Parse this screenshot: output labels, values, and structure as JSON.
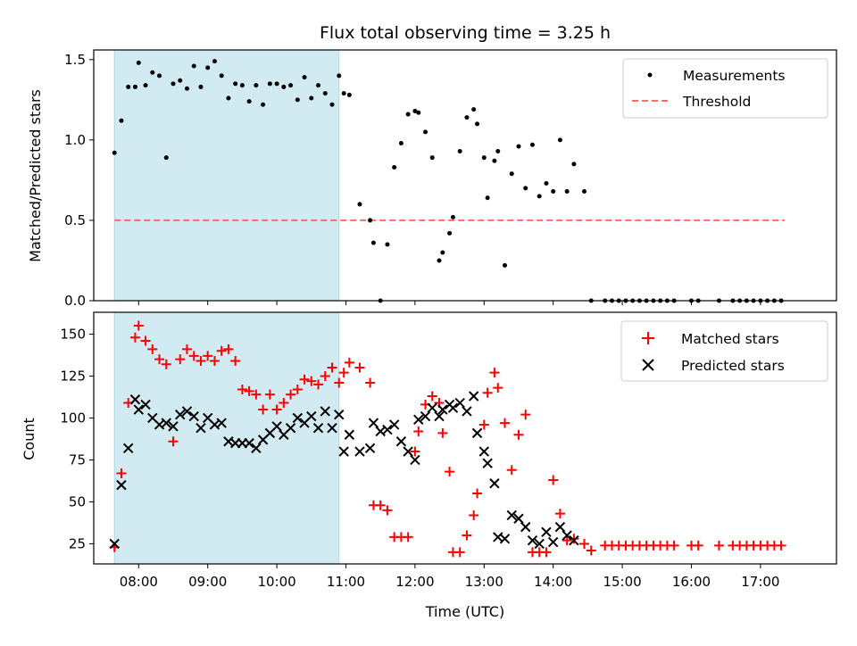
{
  "chart_data": {
    "type": "scatter",
    "title": "Flux total observing time = 3.25 h",
    "xlabel": "Time (UTC)",
    "x_ticks": [
      "08:00",
      "09:00",
      "10:00",
      "11:00",
      "12:00",
      "13:00",
      "14:00",
      "15:00",
      "16:00",
      "17:00"
    ],
    "xlim": [
      7.35,
      18.1
    ],
    "shaded_interval": [
      7.65,
      10.9
    ],
    "colors": {
      "shade": "#add8e6",
      "measurement": "#000000",
      "threshold": "#ff6b6b",
      "matched": "#ff0000",
      "predicted": "#000000"
    },
    "panels": [
      {
        "ylabel": "Matched/Predicted stars",
        "ylim": [
          0,
          1.56
        ],
        "y_ticks": [
          "0.0",
          "0.5",
          "1.0",
          "1.5"
        ],
        "legend_position": "top-right",
        "legend": [
          "Measurements",
          "Threshold"
        ],
        "threshold": {
          "name": "Threshold",
          "value": 0.5,
          "x_range": [
            7.65,
            17.35
          ]
        },
        "series": [
          {
            "name": "Measurements",
            "marker": "dot",
            "x": [
              7.65,
              7.75,
              7.85,
              7.95,
              8.0,
              8.1,
              8.2,
              8.3,
              8.4,
              8.5,
              8.6,
              8.7,
              8.8,
              8.9,
              9.0,
              9.1,
              9.2,
              9.3,
              9.4,
              9.5,
              9.6,
              9.7,
              9.8,
              9.9,
              10.0,
              10.1,
              10.2,
              10.3,
              10.4,
              10.5,
              10.6,
              10.7,
              10.8,
              10.9,
              10.97,
              11.05,
              11.2,
              11.35,
              11.4,
              11.5,
              11.6,
              11.7,
              11.8,
              11.9,
              12.0,
              12.05,
              12.15,
              12.25,
              12.35,
              12.4,
              12.5,
              12.55,
              12.65,
              12.75,
              12.85,
              12.9,
              13.0,
              13.05,
              13.15,
              13.2,
              13.3,
              13.4,
              13.5,
              13.6,
              13.7,
              13.8,
              13.9,
              14.0,
              14.1,
              14.2,
              14.3,
              14.45,
              14.55,
              14.75,
              14.85,
              14.95,
              15.05,
              15.15,
              15.25,
              15.35,
              15.45,
              15.55,
              15.65,
              15.75,
              16.0,
              16.1,
              16.4,
              16.6,
              16.7,
              16.8,
              16.9,
              17.0,
              17.1,
              17.2,
              17.3
            ],
            "y": [
              0.92,
              1.12,
              1.33,
              1.33,
              1.48,
              1.34,
              1.42,
              1.4,
              0.89,
              1.35,
              1.37,
              1.32,
              1.46,
              1.33,
              1.45,
              1.49,
              1.4,
              1.26,
              1.35,
              1.34,
              1.24,
              1.34,
              1.22,
              1.35,
              1.35,
              1.33,
              1.34,
              1.25,
              1.39,
              1.26,
              1.34,
              1.29,
              1.22,
              1.4,
              1.29,
              1.28,
              0.6,
              0.5,
              0.36,
              0.0,
              0.35,
              0.83,
              0.98,
              1.16,
              1.18,
              1.17,
              1.05,
              0.89,
              0.25,
              0.3,
              0.42,
              0.52,
              0.93,
              1.14,
              1.19,
              1.1,
              0.89,
              0.64,
              0.87,
              0.93,
              0.22,
              0.79,
              0.96,
              0.7,
              0.97,
              0.65,
              0.73,
              0.68,
              1.0,
              0.68,
              0.85,
              0.68,
              0.0,
              0.0,
              0.0,
              0.0,
              0.0,
              0.0,
              0.0,
              0.0,
              0.0,
              0.0,
              0.0,
              0.0,
              0.0,
              0.0,
              0.0,
              0.0,
              0.0,
              0.0,
              0.0,
              0.0,
              0.0,
              0.0,
              0.0
            ]
          }
        ]
      },
      {
        "ylabel": "Count",
        "ylim": [
          13,
          163
        ],
        "y_ticks": [
          "25",
          "50",
          "75",
          "100",
          "125",
          "150"
        ],
        "legend_position": "top-right",
        "legend": [
          "Matched stars",
          "Predicted stars"
        ],
        "series": [
          {
            "name": "Matched stars",
            "marker": "plus",
            "x": [
              7.65,
              7.75,
              7.85,
              7.95,
              8.0,
              8.1,
              8.2,
              8.3,
              8.4,
              8.5,
              8.6,
              8.7,
              8.8,
              8.9,
              9.0,
              9.1,
              9.2,
              9.3,
              9.4,
              9.5,
              9.6,
              9.7,
              9.8,
              9.9,
              10.0,
              10.1,
              10.2,
              10.3,
              10.4,
              10.5,
              10.6,
              10.7,
              10.8,
              10.9,
              10.97,
              11.05,
              11.2,
              11.35,
              11.4,
              11.5,
              11.6,
              11.7,
              11.8,
              11.9,
              12.0,
              12.05,
              12.15,
              12.25,
              12.35,
              12.4,
              12.5,
              12.55,
              12.65,
              12.75,
              12.85,
              12.9,
              13.0,
              13.05,
              13.15,
              13.2,
              13.3,
              13.4,
              13.5,
              13.6,
              13.7,
              13.8,
              13.9,
              14.0,
              14.1,
              14.2,
              14.3,
              14.45,
              14.55,
              14.75,
              14.85,
              14.95,
              15.05,
              15.15,
              15.25,
              15.35,
              15.45,
              15.55,
              15.65,
              15.75,
              16.0,
              16.1,
              16.4,
              16.6,
              16.7,
              16.8,
              16.9,
              17.0,
              17.1,
              17.2,
              17.3
            ],
            "y": [
              23,
              67,
              109,
              148,
              155,
              146,
              141,
              135,
              132,
              86,
              135,
              141,
              137,
              134,
              137,
              134,
              140,
              141,
              134,
              117,
              116,
              114,
              105,
              114,
              105,
              109,
              114,
              117,
              123,
              122,
              120,
              125,
              130,
              121,
              127,
              133,
              130,
              121,
              48,
              48,
              45,
              29,
              29,
              29,
              80,
              92,
              108,
              113,
              109,
              91,
              68,
              20,
              20,
              30,
              42,
              55,
              96,
              115,
              127,
              118,
              97,
              69,
              90,
              102,
              20,
              20,
              20,
              63,
              43,
              27,
              28,
              25,
              21,
              24,
              24,
              24,
              24,
              24,
              24,
              24,
              24,
              24,
              24,
              24,
              24,
              24,
              24,
              24,
              24,
              24,
              24,
              24,
              24,
              24,
              24
            ]
          },
          {
            "name": "Predicted stars",
            "marker": "x",
            "x": [
              7.65,
              7.75,
              7.85,
              7.95,
              8.0,
              8.1,
              8.2,
              8.3,
              8.4,
              8.5,
              8.6,
              8.7,
              8.8,
              8.9,
              9.0,
              9.1,
              9.2,
              9.3,
              9.4,
              9.5,
              9.6,
              9.7,
              9.8,
              9.9,
              10.0,
              10.1,
              10.2,
              10.3,
              10.4,
              10.5,
              10.6,
              10.7,
              10.8,
              10.9,
              10.97,
              11.05,
              11.2,
              11.35,
              11.4,
              11.5,
              11.6,
              11.7,
              11.8,
              11.9,
              12.0,
              12.05,
              12.15,
              12.25,
              12.35,
              12.4,
              12.5,
              12.55,
              12.65,
              12.75,
              12.85,
              12.9,
              13.0,
              13.05,
              13.15,
              13.2,
              13.3,
              13.4,
              13.5,
              13.6,
              13.7,
              13.8,
              13.9,
              14.0,
              14.1,
              14.2,
              14.3
            ],
            "y": [
              25,
              60,
              82,
              111,
              105,
              108,
              100,
              96,
              97,
              95,
              102,
              104,
              101,
              94,
              100,
              96,
              97,
              86,
              85,
              85,
              85,
              82,
              87,
              91,
              95,
              90,
              94,
              100,
              97,
              101,
              94,
              104,
              94,
              102,
              80,
              90,
              80,
              82,
              97,
              92,
              93,
              96,
              86,
              80,
              75,
              99,
              101,
              106,
              101,
              105,
              108,
              106,
              109,
              104,
              113,
              91,
              80,
              73,
              61,
              29,
              28,
              42,
              40,
              35,
              27,
              25,
              32,
              26,
              35,
              30,
              27
            ]
          }
        ]
      }
    ]
  }
}
